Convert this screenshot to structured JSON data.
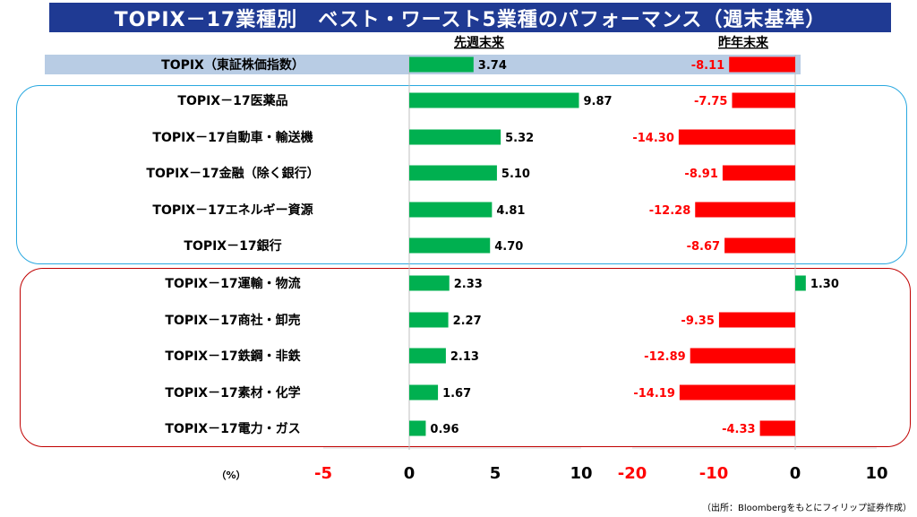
{
  "title": "TOPIX－17業種別　ベスト・ワースト5業種のパフォーマンス（週末基準）",
  "source_note": "（出所：Bloombergをもとにフィリップ証券作成）",
  "unit_label": "（%）",
  "colors": {
    "positive": "#00b050",
    "negative": "#ff0000",
    "title_bg": "#1f3a93",
    "best_frame": "#29a8e0",
    "worst_frame": "#c00000",
    "topix_band": "#b8cce4"
  },
  "chart_data": {
    "type": "bar",
    "orientation": "horizontal",
    "categories": [
      "TOPIX（東証株価指数）",
      "TOPIX－17医薬品",
      "TOPIX－17自動車・輸送機",
      "TOPIX－17金融（除く銀行）",
      "TOPIX－17エネルギー資源",
      "TOPIX－17銀行",
      "TOPIX－17運輸・物流",
      "TOPIX－17商社・卸売",
      "TOPIX－17鉄鋼・非鉄",
      "TOPIX－17素材・化学",
      "TOPIX－17電力・ガス"
    ],
    "series": [
      {
        "name": "先週末来",
        "values": [
          3.74,
          9.87,
          5.32,
          5.1,
          4.81,
          4.7,
          2.33,
          2.27,
          2.13,
          1.67,
          0.96
        ],
        "labels": [
          "3.74",
          "9.87",
          "5.32",
          "5.10",
          "4.81",
          "4.70",
          "2.33",
          "2.27",
          "2.13",
          "1.67",
          "0.96"
        ],
        "xlim": [
          -5,
          10
        ],
        "ticks": [
          "-5",
          "0",
          "5",
          "10"
        ]
      },
      {
        "name": "昨年末来",
        "values": [
          -8.11,
          -7.75,
          -14.3,
          -8.91,
          -12.28,
          -8.67,
          1.3,
          -9.35,
          -12.89,
          -14.19,
          -4.33
        ],
        "labels": [
          "-8.11",
          "-7.75",
          "-14.30",
          "-8.91",
          "-12.28",
          "-8.67",
          "1.30",
          "-9.35",
          "-12.89",
          "-14.19",
          "-4.33"
        ],
        "xlim": [
          -20,
          10
        ],
        "ticks": [
          "-20",
          "-10",
          "0",
          "10"
        ]
      }
    ]
  }
}
